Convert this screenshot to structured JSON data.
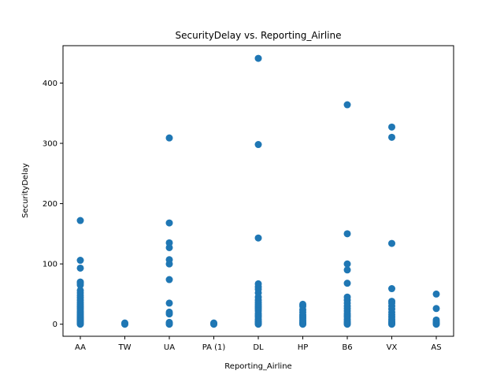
{
  "chart_data": {
    "type": "scatter",
    "title": "SecurityDelay vs. Reporting_Airline",
    "xlabel": "Reporting_Airline",
    "ylabel": "SecurityDelay",
    "categories": [
      "AA",
      "TW",
      "UA",
      "PA (1)",
      "DL",
      "HP",
      "B6",
      "VX",
      "AS"
    ],
    "ylim": [
      -20,
      462
    ],
    "yticks": [
      0,
      100,
      200,
      300,
      400
    ],
    "grid": false,
    "marker_color": "#1f77b4",
    "points": [
      {
        "x": "AA",
        "ys": [
          0,
          1,
          2,
          3,
          4,
          5,
          6,
          7,
          8,
          9,
          10,
          12,
          14,
          16,
          18,
          20,
          22,
          25,
          28,
          30,
          33,
          36,
          40,
          44,
          48,
          52,
          56,
          65,
          68,
          70,
          93,
          106,
          172
        ]
      },
      {
        "x": "TW",
        "ys": [
          0,
          1,
          2
        ]
      },
      {
        "x": "UA",
        "ys": [
          0,
          1,
          2,
          3,
          17,
          20,
          35,
          74,
          100,
          107,
          127,
          135,
          168,
          309
        ]
      },
      {
        "x": "PA (1)",
        "ys": [
          0,
          1,
          2
        ]
      },
      {
        "x": "DL",
        "ys": [
          0,
          1,
          2,
          3,
          4,
          5,
          8,
          12,
          15,
          18,
          22,
          25,
          28,
          30,
          33,
          36,
          40,
          45,
          52,
          58,
          62,
          67,
          143,
          298,
          441
        ]
      },
      {
        "x": "HP",
        "ys": [
          0,
          1,
          2,
          3,
          5,
          7,
          10,
          13,
          16,
          20,
          24,
          30,
          33
        ]
      },
      {
        "x": "B6",
        "ys": [
          0,
          1,
          2,
          3,
          5,
          8,
          12,
          15,
          18,
          22,
          26,
          30,
          35,
          40,
          45,
          68,
          90,
          100,
          150,
          364
        ]
      },
      {
        "x": "VX",
        "ys": [
          0,
          1,
          2,
          3,
          5,
          8,
          12,
          16,
          20,
          25,
          30,
          35,
          38,
          59,
          134,
          310,
          327
        ]
      },
      {
        "x": "AS",
        "ys": [
          0,
          1,
          2,
          4,
          7,
          26,
          50
        ]
      }
    ]
  }
}
